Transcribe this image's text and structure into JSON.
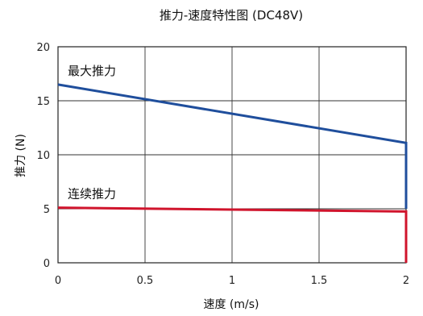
{
  "chart_data": {
    "type": "line",
    "title": "推力-速度特性图 (DC48V)",
    "xlabel": "速度 (m/s)",
    "ylabel": "推力 (N)",
    "xlim": [
      0,
      2
    ],
    "ylim": [
      0,
      20
    ],
    "xticks": [
      0,
      0.5,
      1,
      1.5,
      2
    ],
    "xtick_labels": [
      "0",
      "0.5",
      "1",
      "1.5",
      "2"
    ],
    "yticks": [
      0,
      5,
      10,
      15,
      20
    ],
    "ytick_labels": [
      "0",
      "5",
      "10",
      "15",
      "20"
    ],
    "grid": true,
    "series": [
      {
        "name": "最大推力",
        "color": "#1f4e9c",
        "points": [
          [
            0,
            16.5
          ],
          [
            2,
            11.1
          ],
          [
            2,
            5
          ]
        ]
      },
      {
        "name": "连续推力",
        "color": "#d0142c",
        "points": [
          [
            0,
            5.1
          ],
          [
            2,
            4.75
          ],
          [
            2,
            0
          ]
        ]
      }
    ],
    "series_label_positions": [
      "above-left",
      "above-left"
    ]
  }
}
